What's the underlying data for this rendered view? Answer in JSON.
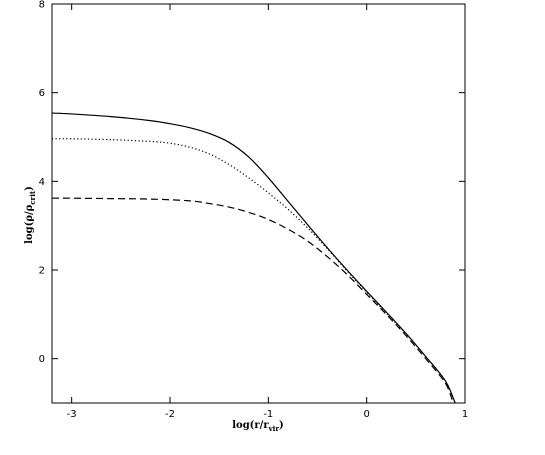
{
  "chart_data": {
    "type": "line",
    "title": "",
    "xlabel": {
      "main": "log(r/r",
      "sub": "vir",
      "close": ")"
    },
    "ylabel": {
      "main": "log(ρ/ρ",
      "sub": "crit",
      "close": ")"
    },
    "xlim": [
      -3.2,
      1.0
    ],
    "ylim": [
      -1.0,
      8.0
    ],
    "x_ticks": [
      -3,
      -2,
      -1,
      0,
      1
    ],
    "y_ticks": [
      0,
      2,
      4,
      6,
      8
    ],
    "grid": false,
    "legend": "none",
    "series": [
      {
        "style": "solid",
        "points": [
          [
            -3.2,
            5.54
          ],
          [
            -3.0,
            5.52
          ],
          [
            -2.6,
            5.46
          ],
          [
            -2.2,
            5.37
          ],
          [
            -2.0,
            5.3
          ],
          [
            -1.8,
            5.21
          ],
          [
            -1.6,
            5.08
          ],
          [
            -1.4,
            4.88
          ],
          [
            -1.2,
            4.55
          ],
          [
            -1.0,
            4.08
          ],
          [
            -0.8,
            3.55
          ],
          [
            -0.6,
            3.02
          ],
          [
            -0.4,
            2.5
          ],
          [
            -0.2,
            2.0
          ],
          [
            0.0,
            1.52
          ],
          [
            0.2,
            1.05
          ],
          [
            0.4,
            0.57
          ],
          [
            0.6,
            0.05
          ],
          [
            0.8,
            -0.5
          ],
          [
            0.9,
            -1.0
          ]
        ]
      },
      {
        "style": "dotted",
        "points": [
          [
            -3.2,
            4.96
          ],
          [
            -3.0,
            4.96
          ],
          [
            -2.6,
            4.94
          ],
          [
            -2.2,
            4.9
          ],
          [
            -2.0,
            4.86
          ],
          [
            -1.8,
            4.77
          ],
          [
            -1.6,
            4.62
          ],
          [
            -1.4,
            4.38
          ],
          [
            -1.2,
            4.08
          ],
          [
            -1.0,
            3.74
          ],
          [
            -0.8,
            3.37
          ],
          [
            -0.6,
            2.95
          ],
          [
            -0.4,
            2.48
          ],
          [
            -0.2,
            1.98
          ],
          [
            0.0,
            1.5
          ],
          [
            0.2,
            1.03
          ],
          [
            0.4,
            0.56
          ],
          [
            0.6,
            0.05
          ],
          [
            0.8,
            -0.5
          ],
          [
            0.9,
            -1.0
          ]
        ]
      },
      {
        "style": "dashed",
        "points": [
          [
            -3.2,
            3.62
          ],
          [
            -3.0,
            3.62
          ],
          [
            -2.6,
            3.61
          ],
          [
            -2.2,
            3.6
          ],
          [
            -1.8,
            3.56
          ],
          [
            -1.6,
            3.5
          ],
          [
            -1.4,
            3.42
          ],
          [
            -1.2,
            3.3
          ],
          [
            -1.0,
            3.14
          ],
          [
            -0.8,
            2.92
          ],
          [
            -0.6,
            2.65
          ],
          [
            -0.4,
            2.3
          ],
          [
            -0.2,
            1.9
          ],
          [
            0.0,
            1.45
          ],
          [
            0.2,
            1.0
          ],
          [
            0.4,
            0.52
          ],
          [
            0.6,
            0.0
          ],
          [
            0.8,
            -0.55
          ],
          [
            0.88,
            -1.0
          ]
        ]
      }
    ]
  }
}
